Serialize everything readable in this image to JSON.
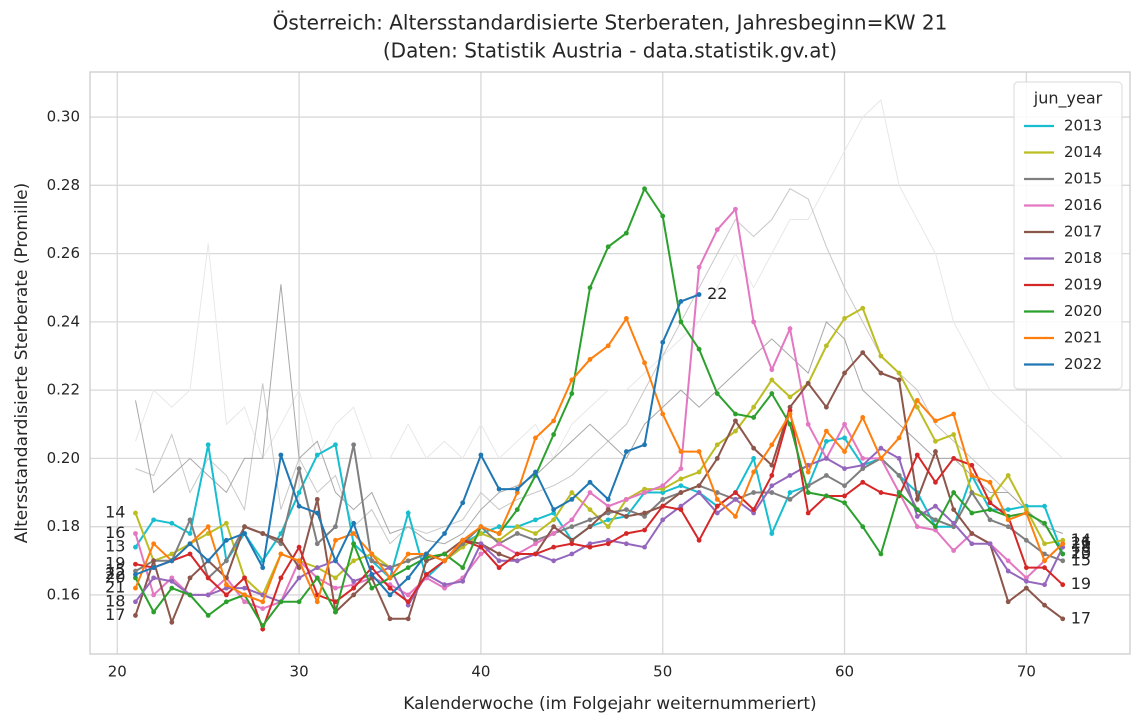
{
  "chart_data": {
    "type": "line",
    "title": "Österreich: Altersstandardisierte Sterberaten, Jahresbeginn=KW 21",
    "subtitle": "(Daten: Statistik Austria - data.statistik.gv.at)",
    "xlabel": "Kalenderwoche (im Folgejahr weiternummeriert)",
    "ylabel": "Altersstandardisierte Sterberate (Promille)",
    "legend_title": "jun_year",
    "legend": "upper right",
    "grid": true,
    "xlim": [
      18.5,
      75.7
    ],
    "ylim": [
      0.1427,
      0.3132
    ],
    "xticks": [
      20,
      30,
      40,
      50,
      60,
      70
    ],
    "yticks": [
      0.16,
      0.18,
      {
        "value": 0.2,
        "label": "0.20"
      },
      0.22,
      0.24,
      0.26,
      0.28,
      {
        "value": 0.3,
        "label": "0.30"
      }
    ],
    "x": [
      21,
      22,
      23,
      24,
      25,
      26,
      27,
      28,
      29,
      30,
      31,
      32,
      33,
      34,
      35,
      36,
      37,
      38,
      39,
      40,
      41,
      42,
      43,
      44,
      45,
      46,
      47,
      48,
      49,
      50,
      51,
      52,
      53,
      54,
      55,
      56,
      57,
      58,
      59,
      60,
      61,
      62,
      63,
      64,
      65,
      66,
      67,
      68,
      69,
      70,
      71,
      72
    ],
    "background_series": [
      {
        "color": "#e8e8e8",
        "values": [
          0.205,
          0.22,
          0.215,
          0.22,
          0.263,
          0.21,
          0.215,
          0.2,
          0.21,
          0.22,
          0.2,
          0.21,
          0.215,
          0.2,
          0.2,
          0.21,
          0.2,
          0.205,
          0.2,
          0.21,
          0.2,
          0.205,
          0.21,
          0.2,
          0.21,
          0.215,
          0.22,
          0.22,
          0.225,
          0.23,
          0.235,
          0.24,
          0.25,
          0.26,
          0.25,
          0.26,
          0.27,
          0.27,
          0.28,
          0.29,
          0.3,
          0.305,
          0.28,
          0.27,
          0.26,
          0.24,
          0.23,
          0.22,
          0.215,
          0.21,
          0.205,
          0.2
        ]
      },
      {
        "color": "#c8c8c8",
        "values": [
          0.197,
          0.195,
          0.207,
          0.19,
          0.2,
          0.195,
          0.185,
          0.222,
          0.185,
          0.2,
          0.19,
          0.195,
          0.18,
          0.185,
          0.175,
          0.18,
          0.178,
          0.18,
          0.182,
          0.19,
          0.185,
          0.188,
          0.19,
          0.192,
          0.195,
          0.2,
          0.205,
          0.21,
          0.22,
          0.23,
          0.24,
          0.25,
          0.26,
          0.27,
          0.265,
          0.27,
          0.279,
          0.276,
          0.262,
          0.25,
          0.24,
          0.23,
          0.225,
          0.22,
          0.21,
          0.205,
          0.2,
          0.195,
          0.19,
          0.185,
          0.18,
          0.178
        ]
      },
      {
        "color": "#a8a8a8",
        "values": [
          0.217,
          0.19,
          0.195,
          0.2,
          0.195,
          0.19,
          0.2,
          0.2,
          0.251,
          0.2,
          0.205,
          0.19,
          0.185,
          0.19,
          0.178,
          0.18,
          0.176,
          0.175,
          0.178,
          0.185,
          0.19,
          0.192,
          0.195,
          0.2,
          0.205,
          0.21,
          0.205,
          0.2,
          0.21,
          0.215,
          0.22,
          0.215,
          0.22,
          0.225,
          0.23,
          0.235,
          0.23,
          0.225,
          0.24,
          0.235,
          0.22,
          0.215,
          0.21,
          0.205,
          0.2,
          0.2,
          0.195,
          0.19,
          0.19,
          0.185,
          0.18,
          0.178
        ]
      }
    ],
    "series": [
      {
        "name": "2013",
        "label": "13",
        "color": "#17becf",
        "values": [
          0.174,
          0.182,
          0.181,
          0.178,
          0.204,
          0.17,
          0.178,
          0.17,
          0.178,
          0.19,
          0.201,
          0.204,
          0.175,
          0.17,
          0.165,
          0.184,
          0.165,
          0.17,
          0.175,
          0.178,
          0.18,
          0.18,
          0.182,
          0.184,
          0.176,
          0.18,
          0.182,
          0.183,
          0.19,
          0.19,
          0.192,
          0.19,
          0.186,
          0.19,
          0.2,
          0.178,
          0.19,
          0.192,
          0.205,
          0.206,
          0.198,
          0.2,
          0.195,
          0.19,
          0.18,
          0.18,
          0.195,
          0.185,
          0.185,
          0.186,
          0.186,
          0.172
        ]
      },
      {
        "name": "2014",
        "label": "14",
        "color": "#bcbd22",
        "values": [
          0.184,
          0.17,
          0.172,
          0.175,
          0.178,
          0.181,
          0.165,
          0.16,
          0.172,
          0.17,
          0.168,
          0.165,
          0.17,
          0.172,
          0.168,
          0.17,
          0.172,
          0.17,
          0.174,
          0.178,
          0.176,
          0.18,
          0.178,
          0.182,
          0.19,
          0.185,
          0.18,
          0.188,
          0.191,
          0.191,
          0.194,
          0.196,
          0.204,
          0.208,
          0.215,
          0.223,
          0.218,
          0.222,
          0.233,
          0.241,
          0.244,
          0.23,
          0.225,
          0.215,
          0.205,
          0.207,
          0.19,
          0.188,
          0.195,
          0.185,
          0.175,
          0.176
        ]
      },
      {
        "name": "2015",
        "label": "15",
        "color": "#7f7f7f",
        "values": [
          0.167,
          0.17,
          0.17,
          0.182,
          0.165,
          0.17,
          0.18,
          0.178,
          0.175,
          0.197,
          0.175,
          0.18,
          0.204,
          0.17,
          0.168,
          0.17,
          0.172,
          0.17,
          0.175,
          0.18,
          0.175,
          0.178,
          0.176,
          0.178,
          0.18,
          0.182,
          0.184,
          0.185,
          0.183,
          0.188,
          0.19,
          0.192,
          0.19,
          0.188,
          0.19,
          0.19,
          0.188,
          0.192,
          0.195,
          0.192,
          0.197,
          0.2,
          0.195,
          0.185,
          0.182,
          0.18,
          0.19,
          0.182,
          0.18,
          0.176,
          0.172,
          0.17
        ]
      },
      {
        "name": "2016",
        "label": "16",
        "color": "#e377c2",
        "values": [
          0.178,
          0.16,
          0.165,
          0.16,
          0.16,
          0.165,
          0.158,
          0.156,
          0.158,
          0.17,
          0.165,
          0.162,
          0.163,
          0.165,
          0.163,
          0.16,
          0.165,
          0.162,
          0.165,
          0.172,
          0.175,
          0.172,
          0.175,
          0.178,
          0.182,
          0.19,
          0.186,
          0.188,
          0.19,
          0.192,
          0.197,
          0.256,
          0.267,
          0.273,
          0.24,
          0.226,
          0.238,
          0.21,
          0.2,
          0.21,
          0.2,
          0.2,
          0.19,
          0.18,
          0.179,
          0.173,
          0.178,
          0.175,
          0.17,
          0.165,
          0.17,
          0.175
        ]
      },
      {
        "name": "2017",
        "label": "17",
        "color": "#8c564b",
        "values": [
          0.154,
          0.17,
          0.152,
          0.165,
          0.17,
          0.165,
          0.18,
          0.178,
          0.176,
          0.168,
          0.188,
          0.155,
          0.16,
          0.165,
          0.153,
          0.153,
          0.17,
          0.172,
          0.176,
          0.175,
          0.172,
          0.17,
          0.172,
          0.18,
          0.176,
          0.18,
          0.185,
          0.183,
          0.184,
          0.186,
          0.19,
          0.192,
          0.2,
          0.211,
          0.203,
          0.198,
          0.215,
          0.222,
          0.215,
          0.225,
          0.231,
          0.225,
          0.223,
          0.188,
          0.202,
          0.185,
          0.178,
          0.175,
          0.158,
          0.162,
          0.157,
          0.153
        ]
      },
      {
        "name": "2018",
        "label": "18",
        "color": "#9467bd",
        "values": [
          0.158,
          0.165,
          0.164,
          0.16,
          0.16,
          0.162,
          0.162,
          0.16,
          0.158,
          0.165,
          0.168,
          0.17,
          0.164,
          0.166,
          0.168,
          0.157,
          0.166,
          0.163,
          0.164,
          0.175,
          0.17,
          0.17,
          0.172,
          0.17,
          0.172,
          0.175,
          0.176,
          0.175,
          0.174,
          0.182,
          0.186,
          0.19,
          0.184,
          0.188,
          0.184,
          0.192,
          0.195,
          0.198,
          0.2,
          0.197,
          0.198,
          0.203,
          0.2,
          0.183,
          0.186,
          0.181,
          0.175,
          0.175,
          0.167,
          0.164,
          0.163,
          0.174
        ]
      },
      {
        "name": "2019",
        "label": "19",
        "color": "#d62728",
        "values": [
          0.169,
          0.168,
          0.17,
          0.172,
          0.165,
          0.16,
          0.165,
          0.15,
          0.165,
          0.174,
          0.16,
          0.158,
          0.162,
          0.168,
          0.162,
          0.158,
          0.166,
          0.17,
          0.176,
          0.174,
          0.168,
          0.172,
          0.172,
          0.174,
          0.175,
          0.174,
          0.175,
          0.178,
          0.179,
          0.186,
          0.185,
          0.176,
          0.186,
          0.19,
          0.185,
          0.195,
          0.214,
          0.184,
          0.189,
          0.189,
          0.193,
          0.19,
          0.189,
          0.201,
          0.193,
          0.2,
          0.198,
          0.187,
          0.183,
          0.168,
          0.168,
          0.163
        ]
      },
      {
        "name": "2020",
        "label": "20",
        "color": "#2ca02c",
        "values": [
          0.165,
          0.155,
          0.162,
          0.16,
          0.154,
          0.158,
          0.16,
          0.151,
          0.158,
          0.158,
          0.165,
          0.155,
          0.175,
          0.162,
          0.165,
          0.168,
          0.171,
          0.172,
          0.168,
          0.18,
          0.178,
          0.185,
          0.195,
          0.207,
          0.219,
          0.25,
          0.262,
          0.266,
          0.279,
          0.271,
          0.24,
          0.232,
          0.219,
          0.213,
          0.212,
          0.219,
          0.21,
          0.19,
          0.189,
          0.187,
          0.18,
          0.172,
          0.19,
          0.185,
          0.18,
          0.19,
          0.184,
          0.185,
          0.183,
          0.184,
          0.181,
          0.172
        ]
      },
      {
        "name": "2021",
        "label": "21",
        "color": "#ff7f0e",
        "values": [
          0.162,
          0.175,
          0.17,
          0.175,
          0.18,
          0.163,
          0.16,
          0.158,
          0.172,
          0.17,
          0.158,
          0.176,
          0.178,
          0.172,
          0.165,
          0.172,
          0.172,
          0.17,
          0.176,
          0.18,
          0.178,
          0.19,
          0.206,
          0.211,
          0.223,
          0.229,
          0.233,
          0.241,
          0.228,
          0.213,
          0.202,
          0.202,
          0.188,
          0.183,
          0.196,
          0.204,
          0.213,
          0.196,
          0.208,
          0.202,
          0.212,
          0.2,
          0.206,
          0.217,
          0.211,
          0.213,
          0.195,
          0.193,
          0.182,
          0.184,
          0.17,
          0.175
        ]
      },
      {
        "name": "2022",
        "label": "22",
        "color": "#1f77b4",
        "values": [
          0.166,
          0.168,
          0.17,
          0.175,
          0.17,
          0.176,
          0.178,
          0.168,
          0.201,
          0.186,
          0.184,
          0.17,
          0.181,
          0.166,
          0.16,
          0.165,
          0.172,
          0.178,
          0.187,
          0.201,
          0.191,
          0.191,
          0.196,
          0.185,
          0.188,
          0.193,
          0.188,
          0.202,
          0.204,
          0.234,
          0.246,
          0.248,
          null,
          null,
          null,
          null,
          null,
          null,
          null,
          null,
          null,
          null,
          null,
          null,
          null,
          null,
          null,
          null,
          null,
          null,
          null,
          null
        ]
      }
    ]
  }
}
